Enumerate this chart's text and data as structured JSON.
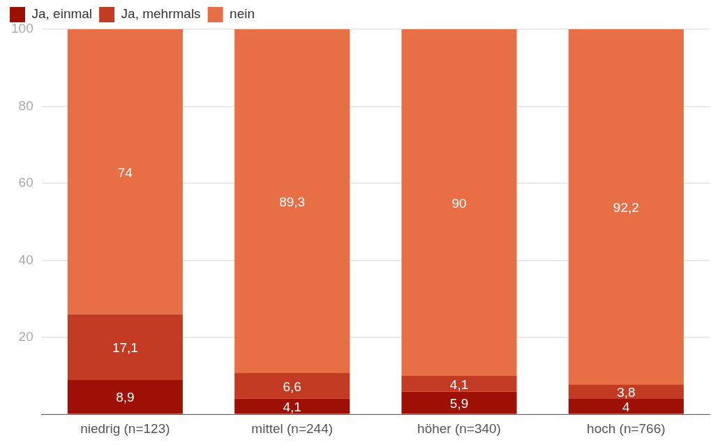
{
  "chart_data": {
    "type": "bar",
    "stacked": true,
    "categories": [
      "niedrig (n=123)",
      "mittel (n=244)",
      "höher (n=340)",
      "hoch (n=766)"
    ],
    "series": [
      {
        "name": "Ja, einmal",
        "color": "#9e1006",
        "values": [
          8.9,
          4.1,
          5.9,
          4
        ],
        "value_labels": [
          "8,9",
          "4,1",
          "5,9",
          "4"
        ]
      },
      {
        "name": "Ja, mehrmals",
        "color": "#c23b22",
        "values": [
          17.1,
          6.6,
          4.1,
          3.8
        ],
        "value_labels": [
          "17,1",
          "6,6",
          "4,1",
          "3,8"
        ]
      },
      {
        "name": "nein",
        "color": "#e86f45",
        "values": [
          74,
          89.3,
          90,
          92.2
        ],
        "value_labels": [
          "74",
          "89,3",
          "90",
          "92,2"
        ]
      }
    ],
    "ylim": [
      0,
      100
    ],
    "yticks": [
      {
        "value": 0,
        "label": null
      },
      20,
      40,
      60,
      80,
      100
    ],
    "grid": "y",
    "legend": "top left"
  }
}
